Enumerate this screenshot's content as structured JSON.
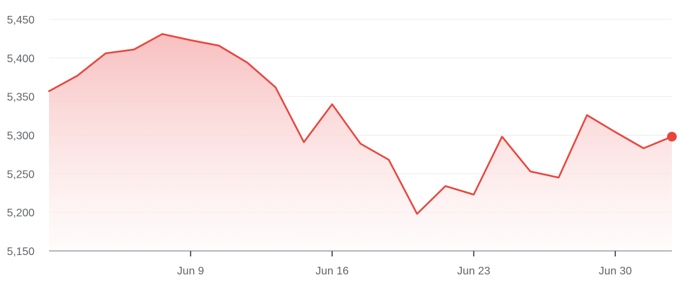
{
  "chart_data": {
    "type": "area",
    "title": "",
    "xlabel": "",
    "ylabel": "",
    "ylim": [
      5150,
      5450
    ],
    "y_ticks": [
      5150,
      5200,
      5250,
      5300,
      5350,
      5400,
      5450
    ],
    "y_tick_labels": [
      "5,150",
      "5,200",
      "5,250",
      "5,300",
      "5,350",
      "5,400",
      "5,450"
    ],
    "x_ticks": [
      {
        "label": "Jun 9",
        "index": 5
      },
      {
        "label": "Jun 16",
        "index": 10
      },
      {
        "label": "Jun 23",
        "index": 15
      },
      {
        "label": "Jun 30",
        "index": 20
      }
    ],
    "grid": true,
    "legend": "none",
    "series": [
      {
        "values": [
          5357,
          5377,
          5406,
          5411,
          5431,
          5423,
          5416,
          5394,
          5362,
          5291,
          5340,
          5289,
          5268,
          5198,
          5234,
          5223,
          5298,
          5253,
          5245,
          5326,
          5304,
          5283,
          5298
        ],
        "color": "#e8453c",
        "fill_top": "#f7bcbc",
        "fill_bottom": "#fffafa"
      }
    ]
  }
}
